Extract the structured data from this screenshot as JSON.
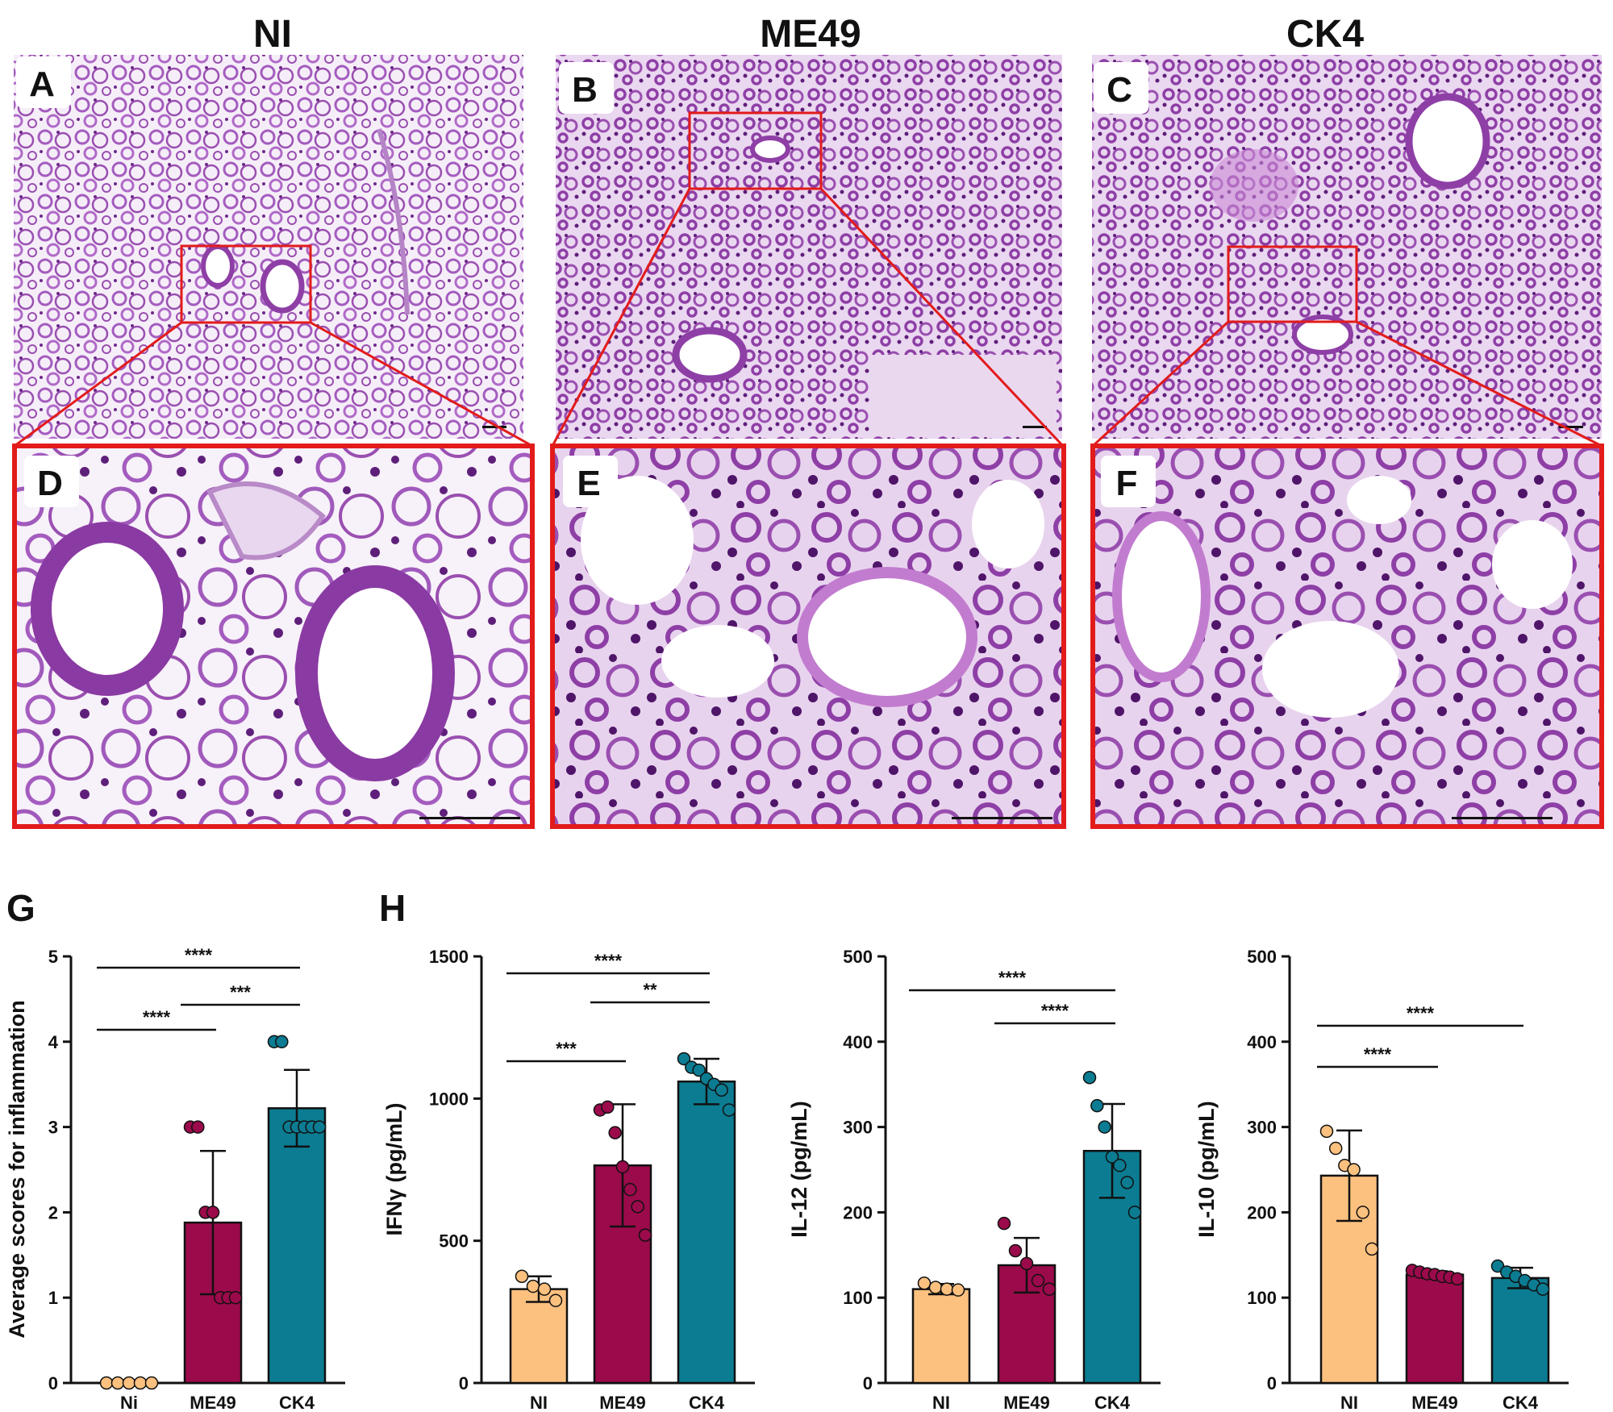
{
  "column_titles": [
    "NI",
    "ME49",
    "CK4"
  ],
  "micrograph_panels": [
    {
      "letter": "A",
      "group": "NI"
    },
    {
      "letter": "B",
      "group": "ME49"
    },
    {
      "letter": "C",
      "group": "CK4"
    },
    {
      "letter": "D",
      "group": "NI"
    },
    {
      "letter": "E",
      "group": "ME49"
    },
    {
      "letter": "F",
      "group": "CK4"
    }
  ],
  "colors": {
    "NI": "#fcc17f",
    "ME49": "#9b0a4a",
    "CK4": "#0b7c92",
    "highlight_box": "#e21b1b",
    "tissue_bg": "#f4eef7",
    "tissue_stain": "#9a4fb0"
  },
  "chart_labels": {
    "G": "G",
    "H": "H"
  },
  "chart_data": [
    {
      "type": "bar",
      "panel": "G",
      "categories": [
        "Ni",
        "ME49",
        "CK4"
      ],
      "series": [
        {
          "values": [
            0,
            1.88,
            3.22
          ],
          "sd": [
            0,
            0.84,
            0.45
          ]
        }
      ],
      "points": [
        [
          0,
          0,
          0,
          0,
          0
        ],
        [
          3,
          3,
          2,
          2,
          1,
          1,
          1
        ],
        [
          4,
          4,
          3,
          3,
          3,
          3,
          3
        ]
      ],
      "ylabel": "Average scores for inflammation",
      "ylim": [
        0,
        5
      ],
      "yticks": [
        0,
        1,
        2,
        3,
        4,
        5
      ],
      "significance": [
        {
          "from": 0,
          "to": 2,
          "label": "****"
        },
        {
          "from": 1,
          "to": 2,
          "label": "***"
        },
        {
          "from": 0,
          "to": 1,
          "label": "****"
        }
      ]
    },
    {
      "type": "bar",
      "panel": "H",
      "categories": [
        "NI",
        "ME49",
        "CK4"
      ],
      "series": [
        {
          "values": [
            330,
            765,
            1060
          ],
          "sd": [
            45,
            215,
            80
          ]
        }
      ],
      "points": [
        [
          375,
          340,
          330,
          290
        ],
        [
          960,
          970,
          880,
          760,
          680,
          620,
          520
        ],
        [
          1140,
          1110,
          1100,
          1070,
          1050,
          1030,
          960
        ]
      ],
      "ylabel": "IFNγ (pg/mL)",
      "ylim": [
        0,
        1500
      ],
      "yticks": [
        0,
        500,
        1000,
        1500
      ],
      "significance": [
        {
          "from": 0,
          "to": 2,
          "label": "****"
        },
        {
          "from": 1,
          "to": 2,
          "label": "**"
        },
        {
          "from": 0,
          "to": 1,
          "label": "***"
        }
      ]
    },
    {
      "type": "bar",
      "panel": "H",
      "categories": [
        "NI",
        "ME49",
        "CK4"
      ],
      "series": [
        {
          "values": [
            110,
            138,
            272
          ],
          "sd": [
            6,
            32,
            55
          ]
        }
      ],
      "points": [
        [
          117,
          112,
          110,
          109
        ],
        [
          187,
          155,
          140,
          120,
          110
        ],
        [
          358,
          325,
          300,
          265,
          255,
          235,
          200
        ]
      ],
      "ylabel": "IL-12 (pg/mL)",
      "ylim": [
        0,
        500
      ],
      "yticks": [
        0,
        100,
        200,
        300,
        400,
        500
      ],
      "significance": [
        {
          "from": 0,
          "to": 2,
          "label": "****"
        },
        {
          "from": 1,
          "to": 2,
          "label": "****"
        }
      ]
    },
    {
      "type": "bar",
      "panel": "H",
      "categories": [
        "NI",
        "ME49",
        "CK4"
      ],
      "series": [
        {
          "values": [
            243,
            127,
            123
          ],
          "sd": [
            53,
            4,
            12
          ]
        }
      ],
      "points": [
        [
          295,
          275,
          255,
          250,
          200,
          157
        ],
        [
          132,
          130,
          128,
          127,
          125,
          124,
          122
        ],
        [
          137,
          130,
          125,
          120,
          115,
          110
        ]
      ],
      "ylabel": "IL-10 (pg/mL)",
      "ylim": [
        0,
        500
      ],
      "yticks": [
        0,
        100,
        200,
        300,
        400,
        500
      ],
      "significance": [
        {
          "from": 0,
          "to": 2,
          "label": "****"
        },
        {
          "from": 0,
          "to": 1,
          "label": "****"
        }
      ]
    }
  ]
}
